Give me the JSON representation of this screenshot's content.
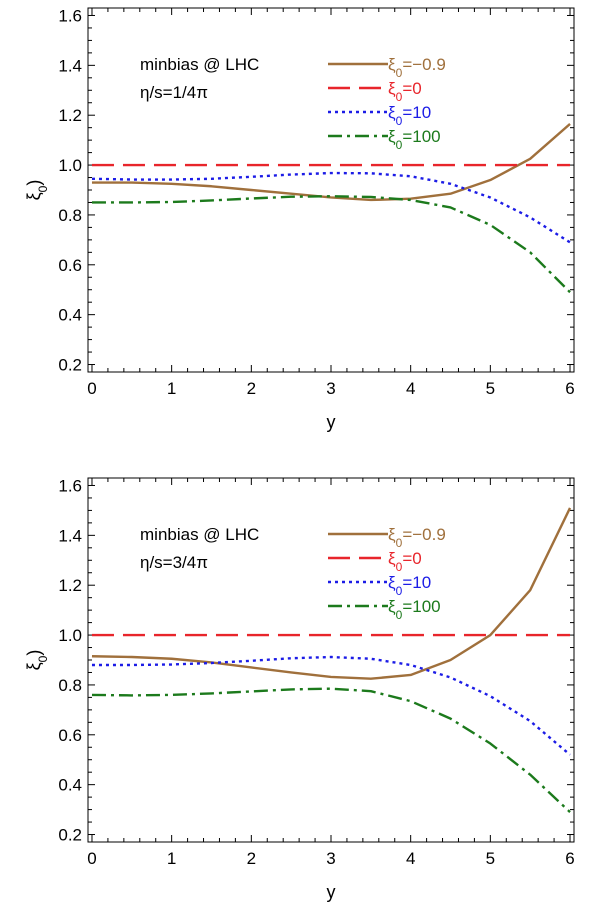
{
  "chart_data": [
    {
      "type": "line",
      "xlabel": "y",
      "ylabel": "Φ̃(ξ0)",
      "xlim": [
        0,
        6
      ],
      "ylim": [
        0.2,
        1.6
      ],
      "xticks": [
        "0",
        "1",
        "2",
        "3",
        "4",
        "5",
        "6"
      ],
      "yticks": [
        "0.2",
        "0.4",
        "0.6",
        "0.8",
        "1.0",
        "1.2",
        "1.4",
        "1.6"
      ],
      "annotations": [
        "minbias @ LHC",
        "η/s=1/4π"
      ],
      "legend_position": "top-right",
      "series": [
        {
          "name": "ξ0=−0.9",
          "color": "#a0703c",
          "dash": "solid",
          "x": [
            0,
            0.5,
            1,
            1.5,
            2,
            2.5,
            3,
            3.5,
            4,
            4.5,
            5,
            5.5,
            6
          ],
          "values": [
            0.93,
            0.93,
            0.925,
            0.915,
            0.9,
            0.885,
            0.87,
            0.86,
            0.865,
            0.885,
            0.94,
            1.025,
            1.165
          ]
        },
        {
          "name": "ξ0=0",
          "color": "#e8252b",
          "dash": "long",
          "x": [
            0,
            6
          ],
          "values": [
            1.0,
            1.0
          ]
        },
        {
          "name": "ξ0=10",
          "color": "#1c1ce6",
          "dash": "dot",
          "x": [
            0,
            0.5,
            1,
            1.5,
            2,
            2.5,
            3,
            3.5,
            4,
            4.5,
            5,
            5.5,
            6
          ],
          "values": [
            0.945,
            0.942,
            0.942,
            0.945,
            0.953,
            0.962,
            0.968,
            0.967,
            0.955,
            0.925,
            0.87,
            0.79,
            0.69
          ]
        },
        {
          "name": "ξ0=100",
          "color": "#1c7a1c",
          "dash": "dashdot",
          "x": [
            0,
            0.5,
            1,
            1.5,
            2,
            2.5,
            3,
            3.5,
            4,
            4.5,
            5,
            5.5,
            6
          ],
          "values": [
            0.85,
            0.85,
            0.852,
            0.858,
            0.866,
            0.873,
            0.875,
            0.872,
            0.86,
            0.83,
            0.76,
            0.65,
            0.49
          ]
        }
      ]
    },
    {
      "type": "line",
      "xlabel": "y",
      "ylabel": "Φ̃(ξ0)",
      "xlim": [
        0,
        6
      ],
      "ylim": [
        0.2,
        1.6
      ],
      "xticks": [
        "0",
        "1",
        "2",
        "3",
        "4",
        "5",
        "6"
      ],
      "yticks": [
        "0.2",
        "0.4",
        "0.6",
        "0.8",
        "1.0",
        "1.2",
        "1.4",
        "1.6"
      ],
      "annotations": [
        "minbias @ LHC",
        "η/s=3/4π"
      ],
      "legend_position": "top-right",
      "series": [
        {
          "name": "ξ0=−0.9",
          "color": "#a0703c",
          "dash": "solid",
          "x": [
            0,
            0.5,
            1,
            1.5,
            2,
            2.5,
            3,
            3.5,
            4,
            4.5,
            5,
            5.5,
            6
          ],
          "values": [
            0.915,
            0.912,
            0.905,
            0.89,
            0.87,
            0.85,
            0.832,
            0.825,
            0.84,
            0.9,
            1.0,
            1.18,
            1.51
          ]
        },
        {
          "name": "ξ0=0",
          "color": "#e8252b",
          "dash": "long",
          "x": [
            0,
            6
          ],
          "values": [
            1.0,
            1.0
          ]
        },
        {
          "name": "ξ0=10",
          "color": "#1c1ce6",
          "dash": "dot",
          "x": [
            0,
            0.5,
            1,
            1.5,
            2,
            2.5,
            3,
            3.5,
            4,
            4.5,
            5,
            5.5,
            6
          ],
          "values": [
            0.88,
            0.88,
            0.882,
            0.888,
            0.897,
            0.907,
            0.912,
            0.905,
            0.88,
            0.83,
            0.755,
            0.655,
            0.52
          ]
        },
        {
          "name": "ξ0=100",
          "color": "#1c7a1c",
          "dash": "dashdot",
          "x": [
            0,
            0.5,
            1,
            1.5,
            2,
            2.5,
            3,
            3.5,
            4,
            4.5,
            5,
            5.5,
            6
          ],
          "values": [
            0.76,
            0.758,
            0.76,
            0.766,
            0.774,
            0.782,
            0.785,
            0.775,
            0.735,
            0.665,
            0.565,
            0.44,
            0.29
          ]
        }
      ]
    }
  ]
}
